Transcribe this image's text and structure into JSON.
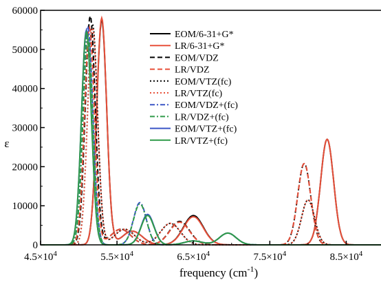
{
  "chart_data": {
    "type": "line",
    "xlabel": "frequency (cm",
    "xlabel_sup": "-1",
    "xlabel_close": ")",
    "ylabel": "ε",
    "xlim": [
      45000,
      90000
    ],
    "ylim": [
      0,
      60000
    ],
    "x_ticks": [
      {
        "value": 45000,
        "label": "4.5×10"
      },
      {
        "value": 55000,
        "label": "5.5×10"
      },
      {
        "value": 65000,
        "label": "6.5×10"
      },
      {
        "value": 75000,
        "label": "7.5×10"
      },
      {
        "value": 85000,
        "label": "8.5×10"
      }
    ],
    "x_tick_exp": "4",
    "y_ticks": [
      0,
      10000,
      20000,
      30000,
      40000,
      50000,
      60000
    ],
    "legend_position": "top-center",
    "series": [
      {
        "name": "EOM/6-31+G*",
        "color": "#000000",
        "dash": "solid",
        "peaks": [
          [
            53000,
            57500,
            650
          ],
          [
            57000,
            3500,
            1300
          ],
          [
            65000,
            7500,
            1300
          ],
          [
            82500,
            27000,
            850
          ]
        ]
      },
      {
        "name": "LR/6-31+G*",
        "color": "#e8503a",
        "dash": "solid",
        "peaks": [
          [
            53000,
            58000,
            650
          ],
          [
            57000,
            3500,
            1300
          ],
          [
            65000,
            7200,
            1300
          ],
          [
            82500,
            27000,
            850
          ]
        ]
      },
      {
        "name": "EOM/VDZ",
        "color": "#000000",
        "dash": "dash",
        "peaks": [
          [
            51500,
            58500,
            650
          ],
          [
            55500,
            4000,
            1300
          ],
          [
            63200,
            6000,
            1300
          ],
          [
            79500,
            20800,
            850
          ]
        ]
      },
      {
        "name": "LR/VDZ",
        "color": "#e8503a",
        "dash": "dash",
        "peaks": [
          [
            51400,
            55500,
            650
          ],
          [
            55500,
            4000,
            1300
          ],
          [
            63200,
            5800,
            1300
          ],
          [
            79500,
            20800,
            850
          ]
        ]
      },
      {
        "name": "EOM/VTZ(fc)",
        "color": "#000000",
        "dash": "dot",
        "peaks": [
          [
            51800,
            56500,
            650
          ],
          [
            56000,
            4000,
            1300
          ],
          [
            62000,
            5500,
            1300
          ],
          [
            80000,
            11500,
            850
          ]
        ]
      },
      {
        "name": "LR/VTZ(fc)",
        "color": "#e8503a",
        "dash": "dot",
        "peaks": [
          [
            51800,
            55500,
            650
          ],
          [
            56000,
            4000,
            1300
          ],
          [
            62000,
            5500,
            1300
          ],
          [
            80000,
            11500,
            850
          ]
        ]
      },
      {
        "name": "EOM/VDZ+(fc)",
        "color": "#3a55c6",
        "dash": "dashdot",
        "peaks": [
          [
            51200,
            55500,
            650
          ],
          [
            58000,
            10800,
            850
          ],
          [
            65000,
            1000,
            1200
          ],
          [
            69500,
            3000,
            1100
          ]
        ]
      },
      {
        "name": "LR/VDZ+(fc)",
        "color": "#2f9a48",
        "dash": "dashdot",
        "peaks": [
          [
            51200,
            53500,
            650
          ],
          [
            58000,
            10500,
            850
          ],
          [
            65000,
            1000,
            1200
          ],
          [
            69500,
            3000,
            1100
          ]
        ]
      },
      {
        "name": "EOM/VTZ+(fc)",
        "color": "#3a55c6",
        "dash": "solid",
        "peaks": [
          [
            51000,
            55000,
            650
          ],
          [
            59000,
            7800,
            850
          ],
          [
            65000,
            1000,
            1200
          ],
          [
            69500,
            3000,
            1100
          ]
        ]
      },
      {
        "name": "LR/VTZ+(fc)",
        "color": "#2f9a48",
        "dash": "solid",
        "peaks": [
          [
            51000,
            54500,
            650
          ],
          [
            59000,
            7500,
            850
          ],
          [
            65000,
            1000,
            1200
          ],
          [
            69500,
            3000,
            1100
          ]
        ]
      }
    ]
  }
}
